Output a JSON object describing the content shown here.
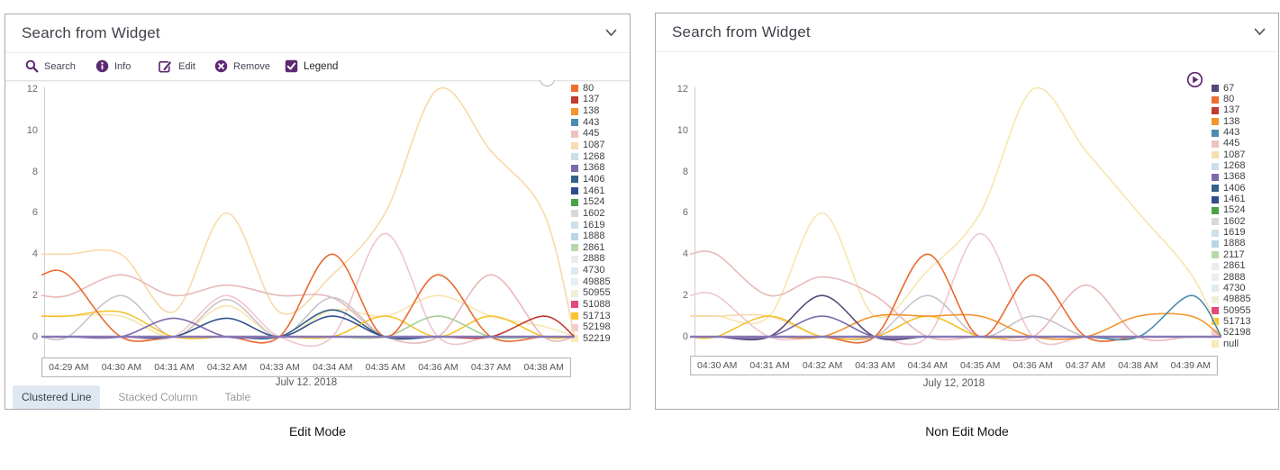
{
  "colors": {
    "brand_purple": "#5d2a72",
    "panel_border": "#a9a9ad",
    "zero_line": "#8878b4",
    "active_tab_bg": "#dfe8f0"
  },
  "panels": [
    {
      "title": "Search from Widget",
      "caption": "Edit Mode",
      "toolbar": {
        "items": [
          {
            "icon": "search-icon",
            "label": "Search"
          },
          {
            "icon": "info-icon",
            "label": "Info"
          },
          {
            "icon": "edit-icon",
            "label": "Edit"
          },
          {
            "icon": "remove-icon",
            "label": "Remove"
          }
        ],
        "legend_checkbox": {
          "label": "Legend",
          "checked": true
        }
      },
      "tabs": [
        {
          "label": "Clustered Line",
          "active": true
        },
        {
          "label": "Stacked Column",
          "active": false
        },
        {
          "label": "Table",
          "active": false
        }
      ]
    },
    {
      "title": "Search from Widget",
      "caption": "Non Edit Mode"
    }
  ],
  "chart_data": [
    {
      "type": "line",
      "title": "",
      "xlabel": "July 12, 2018",
      "ylabel": "",
      "ylim": [
        0,
        12
      ],
      "y_ticks": [
        12,
        10,
        8,
        6,
        4,
        2,
        0
      ],
      "grid": false,
      "legend_position": "right",
      "categories": [
        "04:29 AM",
        "04:30 AM",
        "04:31 AM",
        "04:32 AM",
        "04:33 AM",
        "04:34 AM",
        "04:35 AM",
        "04:36 AM",
        "04:37 AM",
        "04:38 AM"
      ],
      "legend": [
        {
          "label": "80",
          "color": "#ed6f31"
        },
        {
          "label": "137",
          "color": "#c13b31"
        },
        {
          "label": "138",
          "color": "#f3942d"
        },
        {
          "label": "443",
          "color": "#4d8cae"
        },
        {
          "label": "445",
          "color": "#edc3c0"
        },
        {
          "label": "1087",
          "color": "#f8dcb2"
        },
        {
          "label": "1268",
          "color": "#ccdeea"
        },
        {
          "label": "1368",
          "color": "#7e6aaa"
        },
        {
          "label": "1406",
          "color": "#35608a"
        },
        {
          "label": "1461",
          "color": "#2e4d8e"
        },
        {
          "label": "1524",
          "color": "#4ba145"
        },
        {
          "label": "1602",
          "color": "#d8d8d8"
        },
        {
          "label": "1619",
          "color": "#cfe0eb"
        },
        {
          "label": "1888",
          "color": "#b9d5e8"
        },
        {
          "label": "2861",
          "color": "#b8d8ab"
        },
        {
          "label": "2888",
          "color": "#e9edee"
        },
        {
          "label": "4730",
          "color": "#dcebf3"
        },
        {
          "label": "49885",
          "color": "#e4eef6"
        },
        {
          "label": "50955",
          "color": "#eef0da"
        },
        {
          "label": "51088",
          "color": "#e6477c"
        },
        {
          "label": "51713",
          "color": "#fac42e"
        },
        {
          "label": "52198",
          "color": "#f1ccd3"
        },
        {
          "label": "52219",
          "color": "#faeab5"
        }
      ],
      "series": [
        {
          "name": "52219",
          "color": "#f7e5ae",
          "values": [
            1,
            1,
            0,
            1.5,
            0,
            1.3,
            1,
            2,
            1,
            0.5
          ]
        },
        {
          "name": "1087",
          "color": "#f8d9a9",
          "values": [
            4,
            4,
            1.2,
            6,
            1.2,
            3,
            6,
            12,
            9,
            6
          ]
        },
        {
          "name": "52198",
          "color": "#efc6cd",
          "values": [
            0,
            0,
            0,
            2,
            0,
            0,
            5,
            0,
            0,
            0
          ]
        },
        {
          "name": "445",
          "color": "#e9b8b8",
          "values": [
            2,
            3,
            2,
            2.5,
            2,
            1.9,
            0,
            0,
            3,
            0
          ]
        },
        {
          "name": "1602",
          "color": "#c9c3c9",
          "values": [
            0,
            2,
            0,
            1.8,
            0,
            1.9,
            0,
            0,
            0,
            0
          ]
        },
        {
          "name": "1406",
          "color": "#35608a",
          "values": [
            0,
            0,
            0,
            0,
            0,
            1.3,
            0,
            0,
            0,
            0
          ]
        },
        {
          "name": "51713",
          "color": "#f5c32f",
          "values": [
            1,
            1.2,
            0,
            0,
            0,
            0,
            1,
            0,
            1,
            0
          ]
        },
        {
          "name": "2861",
          "color": "#a8cf9a",
          "values": [
            0,
            0,
            0,
            0,
            0,
            0,
            0,
            1,
            0,
            0
          ]
        },
        {
          "name": "80",
          "color": "#e96a2e",
          "values": [
            3,
            0,
            0,
            0,
            0,
            4,
            0,
            3,
            0,
            0
          ]
        },
        {
          "name": "137",
          "color": "#bf3a30",
          "values": [
            0,
            0,
            0,
            0,
            0,
            0,
            0,
            0,
            0,
            1
          ]
        },
        {
          "name": "1368",
          "color": "#7e6aaa",
          "values": [
            0,
            0,
            0.9,
            0,
            0,
            0,
            0,
            0,
            0,
            0
          ]
        },
        {
          "name": "1461",
          "color": "#34518f",
          "values": [
            0,
            0,
            0,
            0.9,
            0,
            1,
            0,
            0,
            0,
            0
          ]
        }
      ],
      "zero_line": {
        "color": "#8878b4",
        "width": 2.4
      }
    },
    {
      "type": "line",
      "title": "",
      "xlabel": "July 12, 2018",
      "ylabel": "",
      "ylim": [
        0,
        12
      ],
      "y_ticks": [
        12,
        10,
        8,
        6,
        4,
        2,
        0
      ],
      "grid": false,
      "legend_position": "right",
      "categories": [
        "04:30 AM",
        "04:31 AM",
        "04:32 AM",
        "04:33 AM",
        "04:34 AM",
        "04:35 AM",
        "04:36 AM",
        "04:37 AM",
        "04:38 AM",
        "04:39 AM"
      ],
      "legend": [
        {
          "label": "67",
          "color": "#564879"
        },
        {
          "label": "80",
          "color": "#ed6f31"
        },
        {
          "label": "137",
          "color": "#c13b31"
        },
        {
          "label": "138",
          "color": "#f3942d"
        },
        {
          "label": "443",
          "color": "#4d8cae"
        },
        {
          "label": "445",
          "color": "#edc3c0"
        },
        {
          "label": "1087",
          "color": "#f8dcb2"
        },
        {
          "label": "1268",
          "color": "#ccdeea"
        },
        {
          "label": "1368",
          "color": "#7e6aaa"
        },
        {
          "label": "1406",
          "color": "#35608a"
        },
        {
          "label": "1461",
          "color": "#2e4d8e"
        },
        {
          "label": "1524",
          "color": "#4ba145"
        },
        {
          "label": "1602",
          "color": "#d8d8d8"
        },
        {
          "label": "1619",
          "color": "#cfe0eb"
        },
        {
          "label": "1888",
          "color": "#b9d5e8"
        },
        {
          "label": "2117",
          "color": "#b8d8ab"
        },
        {
          "label": "2861",
          "color": "#e9edee"
        },
        {
          "label": "2888",
          "color": "#eceff0"
        },
        {
          "label": "4730",
          "color": "#dcebf3"
        },
        {
          "label": "49885",
          "color": "#eef0da"
        },
        {
          "label": "50955",
          "color": "#e6477c"
        },
        {
          "label": "51713",
          "color": "#fac42e"
        },
        {
          "label": "52198",
          "color": "#f1ccd3"
        },
        {
          "label": "null",
          "color": "#faeab5"
        }
      ],
      "series": [
        {
          "name": "null",
          "color": "#f7e5ae",
          "values": [
            1,
            1,
            6,
            1,
            3.2,
            6,
            12,
            9,
            6,
            3
          ]
        },
        {
          "name": "1087",
          "color": "#f8d9a9",
          "values": [
            1,
            1,
            0,
            0,
            1,
            0,
            0,
            0,
            0,
            0
          ]
        },
        {
          "name": "52198",
          "color": "#efc6cd",
          "values": [
            2,
            0,
            0,
            0,
            0,
            5,
            0,
            0,
            0,
            0
          ]
        },
        {
          "name": "445",
          "color": "#e9b8b8",
          "values": [
            4,
            2,
            2.9,
            2,
            0,
            0,
            0,
            2.5,
            0,
            0
          ]
        },
        {
          "name": "1602",
          "color": "#c9c3c9",
          "values": [
            0,
            0,
            0,
            0,
            2,
            0,
            1,
            0,
            0,
            0
          ]
        },
        {
          "name": "51713",
          "color": "#f5c32f",
          "values": [
            0,
            1,
            0,
            0,
            1,
            0,
            0,
            0,
            0,
            0
          ]
        },
        {
          "name": "138",
          "color": "#f3942d",
          "values": [
            0,
            0,
            0,
            1,
            1,
            1,
            0,
            0,
            1,
            1
          ]
        },
        {
          "name": "80",
          "color": "#e96a2e",
          "values": [
            0,
            0,
            0,
            0,
            4,
            0,
            3,
            0,
            0,
            0
          ]
        },
        {
          "name": "443",
          "color": "#4d8cae",
          "values": [
            0,
            0,
            0,
            0,
            0,
            0,
            0,
            0,
            0,
            2
          ]
        },
        {
          "name": "67",
          "color": "#564879",
          "values": [
            0,
            0,
            2,
            0,
            0,
            0,
            0,
            0,
            0,
            0
          ]
        },
        {
          "name": "1368",
          "color": "#7e6aaa",
          "values": [
            0,
            0,
            1,
            0,
            0,
            0,
            0,
            0,
            0,
            0
          ]
        }
      ],
      "zero_line": {
        "color": "#8878b4",
        "width": 2.4
      }
    }
  ]
}
